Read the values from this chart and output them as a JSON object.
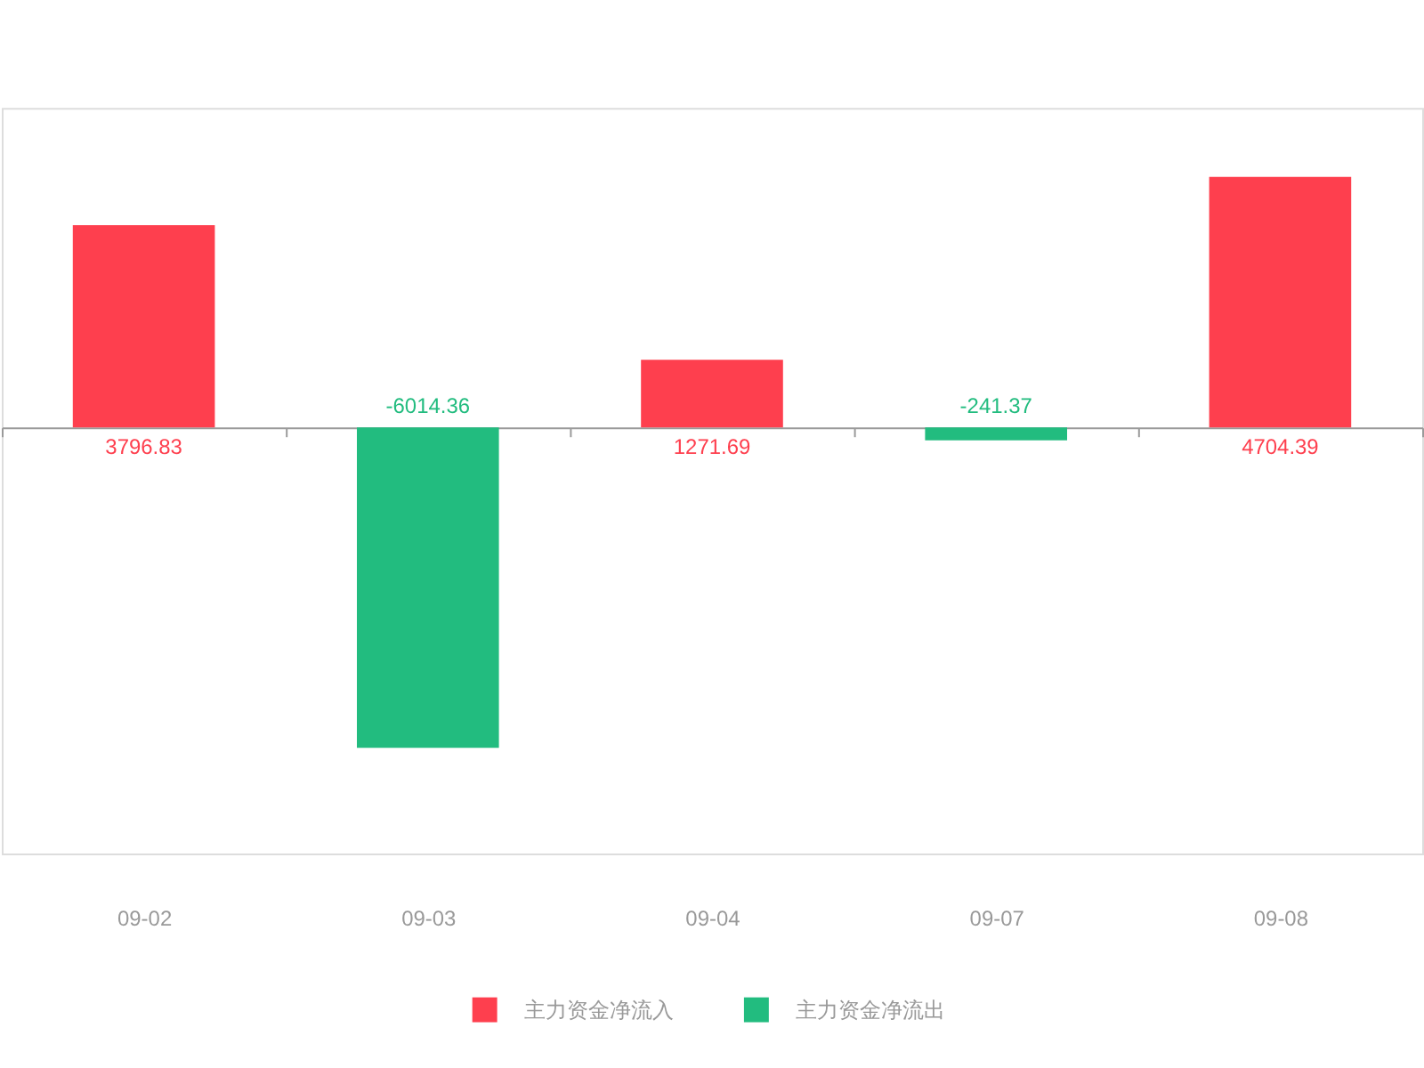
{
  "chart_data": {
    "type": "bar",
    "categories": [
      "09-02",
      "09-03",
      "09-04",
      "09-07",
      "09-08"
    ],
    "series": [
      {
        "name": "主力资金净流入",
        "color": "#fe3f4e",
        "values": [
          3796.83,
          null,
          1271.69,
          null,
          4704.39
        ]
      },
      {
        "name": "主力资金净流出",
        "color": "#22bc7f",
        "values": [
          null,
          -6014.36,
          null,
          -241.37,
          null
        ]
      }
    ],
    "ylim": [
      -8000,
      6000
    ],
    "data_labels": true,
    "legend": "bottom",
    "tick_labels": "x"
  }
}
